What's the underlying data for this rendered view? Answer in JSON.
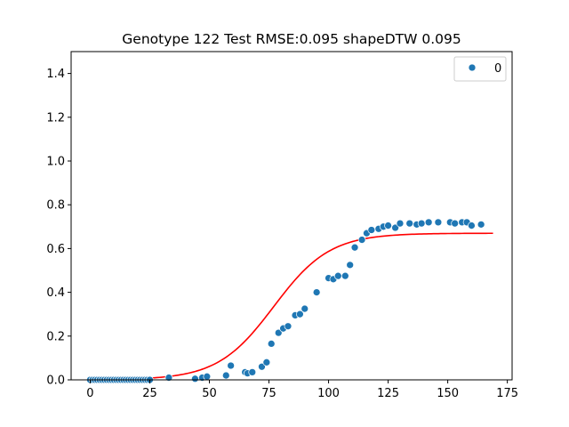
{
  "chart_data": {
    "type": "scatter",
    "title": "Genotype 122 Test RMSE:0.095 shapeDTW 0.095",
    "xlabel": "",
    "ylabel": "",
    "xlim": [
      -8,
      177
    ],
    "ylim": [
      0,
      1.5
    ],
    "x_ticks": [
      0,
      25,
      50,
      75,
      100,
      125,
      150,
      175
    ],
    "y_ticks": [
      0.0,
      0.2,
      0.4,
      0.6,
      0.8,
      1.0,
      1.2,
      1.4
    ],
    "x_tick_labels": [
      "0",
      "25",
      "50",
      "75",
      "100",
      "125",
      "150",
      "175"
    ],
    "y_tick_labels": [
      "0.0",
      "0.2",
      "0.4",
      "0.6",
      "0.8",
      "1.0",
      "1.2",
      "1.4"
    ],
    "grid": false,
    "legend": {
      "position": "top-right",
      "entries": [
        "0"
      ]
    },
    "colors": {
      "points": "#1f77b4",
      "fit": "#ff0000"
    },
    "series": [
      {
        "name": "0",
        "kind": "scatter",
        "x": [
          0,
          1,
          2,
          3,
          4,
          5,
          6,
          7,
          8,
          9,
          10,
          11,
          12,
          13,
          14,
          15,
          16,
          17,
          18,
          19,
          20,
          21,
          22,
          23,
          24,
          25,
          33,
          44,
          47,
          49,
          57,
          59,
          65,
          66,
          68,
          72,
          74,
          76,
          79,
          81,
          83,
          86,
          88,
          90,
          95,
          100,
          102,
          104,
          107,
          109,
          111,
          114,
          116,
          118,
          121,
          123,
          125,
          128,
          130,
          134,
          137,
          139,
          142,
          146,
          151,
          153,
          156,
          158,
          160,
          164
        ],
        "y": [
          0,
          0,
          0,
          0,
          0,
          0,
          0,
          0,
          0,
          0,
          0,
          0,
          0,
          0,
          0,
          0,
          0,
          0,
          0,
          0,
          0,
          0,
          0,
          0,
          0,
          0,
          0.01,
          0.005,
          0.01,
          0.015,
          0.02,
          0.065,
          0.035,
          0.03,
          0.035,
          0.06,
          0.08,
          0.165,
          0.215,
          0.235,
          0.245,
          0.295,
          0.3,
          0.325,
          0.4,
          0.465,
          0.46,
          0.475,
          0.475,
          0.525,
          0.605,
          0.64,
          0.67,
          0.685,
          0.69,
          0.7,
          0.705,
          0.695,
          0.715,
          0.715,
          0.71,
          0.715,
          0.72,
          0.72,
          0.72,
          0.715,
          0.72,
          0.72,
          0.705,
          0.71
        ]
      },
      {
        "name": "",
        "kind": "line",
        "model": "logistic",
        "params": {
          "L": 0.67,
          "k": 0.085,
          "x0": 77
        },
        "x_range": [
          25,
          169
        ]
      }
    ]
  }
}
